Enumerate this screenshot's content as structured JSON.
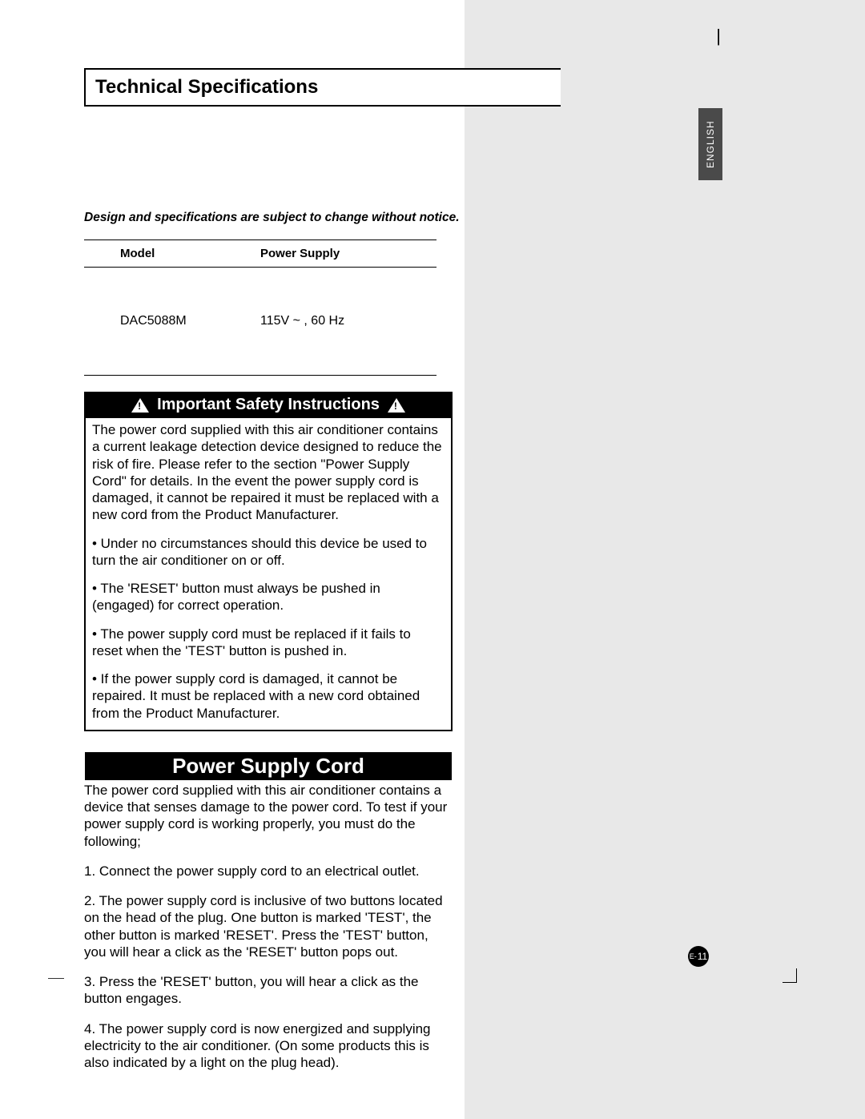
{
  "colors": {
    "page_bg": "#ffffff",
    "panel_bg": "#e8e8e8",
    "tab_bg": "#4a4a4a",
    "text": "#000000",
    "inverse_text": "#ffffff"
  },
  "language_tab": "ENGLISH",
  "title": "Technical Specifications",
  "change_notice": "Design and specifications are subject to change without notice.",
  "spec_table": {
    "headers": {
      "model": "Model",
      "power": "Power Supply"
    },
    "row": {
      "model": "DAC5088M",
      "power": "115V ~ , 60 Hz"
    }
  },
  "safety": {
    "heading": "Important Safety Instructions",
    "intro": "The power cord supplied with this air conditioner contains a current leakage detection device designed to reduce the risk of fire. Please refer to the section \"Power Supply Cord\" for details.  In the event the power supply cord is damaged, it cannot be repaired it must be replaced with a new cord from the Product Manufacturer.",
    "bullets": [
      "• Under no circumstances should this device be used to turn the air conditioner on or off.",
      "• The 'RESET' button must always be pushed in (engaged)  for correct operation.",
      "• The power supply cord must be replaced if it fails to reset when the 'TEST' button is pushed in.",
      "• If the power supply cord is damaged, it cannot be repaired. It must be replaced with a new cord obtained from the Product Manufacturer."
    ]
  },
  "power_cord": {
    "heading": "Power Supply Cord",
    "intro": "The power cord supplied with this air conditioner contains a device that senses damage to the power cord. To test if your power supply cord is working properly, you must do the following;",
    "steps": [
      "1.  Connect the power supply cord to an electrical outlet.",
      "2.  The power supply cord is inclusive of two buttons located on the head of the plug. One button is marked 'TEST', the other button is marked 'RESET'. Press the 'TEST' button, you will hear a click as the 'RESET' button pops out.",
      "3.  Press the 'RESET' button, you will hear a click as the button engages.",
      "4.  The power supply cord is now energized and supplying electricity to the air conditioner. (On some products this is also indicated by a light on the plug head)."
    ]
  },
  "page_number": {
    "prefix": "E-",
    "num": "11"
  }
}
